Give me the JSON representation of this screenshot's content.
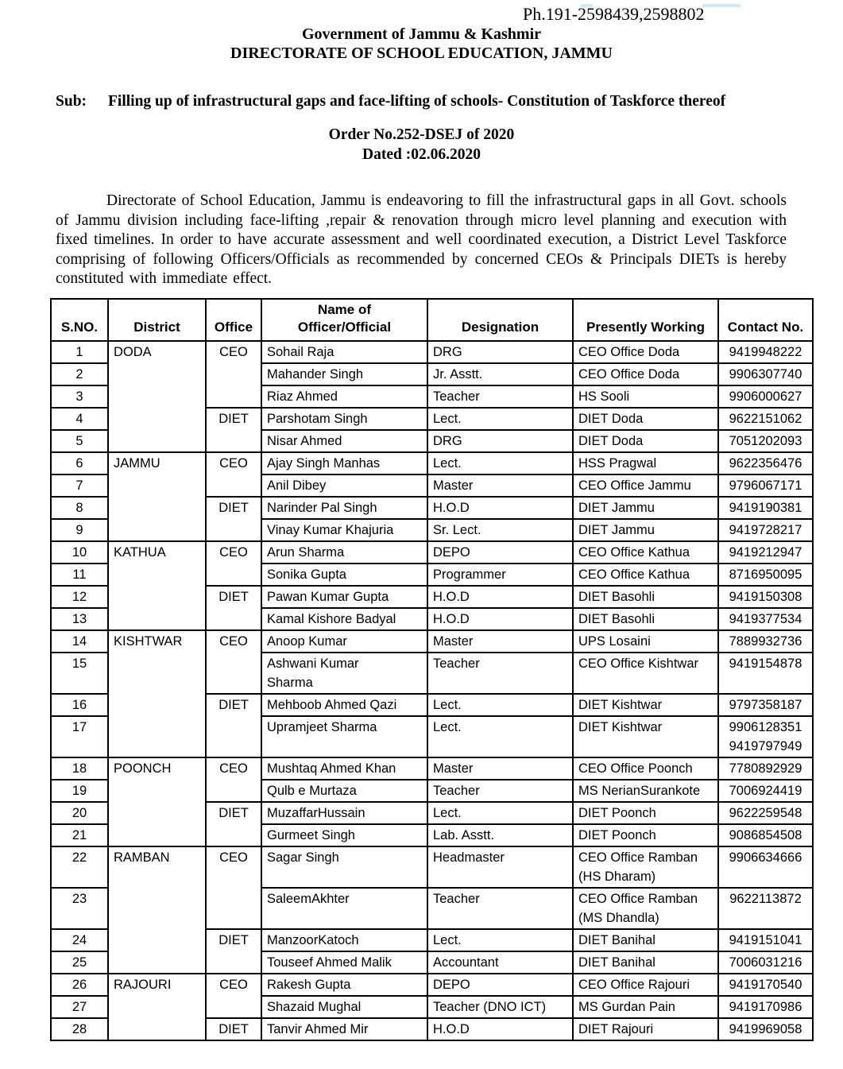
{
  "header": {
    "phone": "Ph.191-2598439,2598802",
    "org_line1": "Government of Jammu & Kashmir",
    "org_line2": "DIRECTORATE OF SCHOOL EDUCATION, JAMMU",
    "subject_label": "Sub:",
    "subject_text": "Filling up of infrastructural gaps and face-lifting of schools- Constitution of Taskforce thereof",
    "order_no": "Order No.252-DSEJ of 2020",
    "order_date": "Dated :02.06.2020"
  },
  "body": {
    "paragraph": "Directorate of School Education, Jammu is endeavoring to fill the infrastructural gaps in all Govt. schools of Jammu division including face-lifting ,repair & renovation through micro level planning and execution with fixed timelines. In order to have accurate assessment and well coordinated execution,  a District Level Taskforce comprising of following Officers/Officials as recommended by concerned CEOs & Principals DIETs is hereby constituted with immediate effect."
  },
  "table": {
    "headers": [
      "S.NO.",
      "District",
      "Office",
      "Name of\nOfficer/Official",
      "Designation",
      "Presently Working",
      "Contact No."
    ],
    "groups": [
      {
        "district": "DODA",
        "offices": [
          {
            "office": "CEO",
            "rows": [
              {
                "sno": "1",
                "name": "Sohail Raja",
                "designation": "DRG",
                "presently": "CEO Office Doda",
                "contact": "9419948222"
              },
              {
                "sno": "2",
                "name": "Mahander Singh",
                "designation": "Jr. Asstt.",
                "presently": "CEO Office Doda",
                "contact": "9906307740"
              },
              {
                "sno": "3",
                "name": "Riaz Ahmed",
                "designation": "Teacher",
                "presently": "HS Sooli",
                "contact": "9906000627"
              }
            ]
          },
          {
            "office": "DIET",
            "rows": [
              {
                "sno": "4",
                "name": "Parshotam Singh",
                "designation": "Lect.",
                "presently": "DIET Doda",
                "contact": "9622151062"
              },
              {
                "sno": "5",
                "name": "Nisar Ahmed",
                "designation": "DRG",
                "presently": "DIET Doda",
                "contact": "7051202093"
              }
            ]
          }
        ]
      },
      {
        "district": "JAMMU",
        "offices": [
          {
            "office": "CEO",
            "rows": [
              {
                "sno": "6",
                "name": "Ajay Singh Manhas",
                "designation": "Lect.",
                "presently": "HSS Pragwal",
                "contact": "9622356476"
              },
              {
                "sno": "7",
                "name": "Anil Dibey",
                "designation": "Master",
                "presently": "CEO Office Jammu",
                "contact": "9796067171"
              }
            ]
          },
          {
            "office": "DIET",
            "rows": [
              {
                "sno": "8",
                "name": "Narinder Pal Singh",
                "designation": "H.O.D",
                "presently": "DIET Jammu",
                "contact": "9419190381"
              },
              {
                "sno": "9",
                "name": "Vinay Kumar Khajuria",
                "designation": "Sr. Lect.",
                "presently": "DIET Jammu",
                "contact": "9419728217"
              }
            ]
          }
        ]
      },
      {
        "district": "KATHUA",
        "offices": [
          {
            "office": "CEO",
            "rows": [
              {
                "sno": "10",
                "name": "Arun Sharma",
                "designation": "DEPO",
                "presently": "CEO Office Kathua",
                "contact": "9419212947"
              },
              {
                "sno": "11",
                "name": "Sonika Gupta",
                "designation": "Programmer",
                "presently": "CEO Office Kathua",
                "contact": "8716950095"
              }
            ]
          },
          {
            "office": "DIET",
            "rows": [
              {
                "sno": "12",
                "name": "Pawan Kumar Gupta",
                "designation": "H.O.D",
                "presently": "DIET Basohli",
                "contact": "9419150308"
              },
              {
                "sno": "13",
                "name": "Kamal Kishore Badyal",
                "designation": "H.O.D",
                "presently": "DIET Basohli",
                "contact": "9419377534"
              }
            ]
          }
        ]
      },
      {
        "district": "KISHTWAR",
        "offices": [
          {
            "office": "CEO",
            "rows": [
              {
                "sno": "14",
                "name": "Anoop Kumar",
                "designation": "Master",
                "presently": "UPS Losaini",
                "contact": "7889932736"
              },
              {
                "sno": "15",
                "tall": true,
                "name": "Ashwani Kumar\nSharma",
                "designation": "Teacher",
                "presently": "CEO Office Kishtwar",
                "contact": "9419154878"
              }
            ]
          },
          {
            "office": "DIET",
            "rows": [
              {
                "sno": "16",
                "name": "Mehboob Ahmed Qazi",
                "designation": "Lect.",
                "presently": "DIET Kishtwar",
                "contact": "9797358187"
              },
              {
                "sno": "17",
                "tall": true,
                "name": "Upramjeet Sharma",
                "designation": "Lect.",
                "presently": "DIET Kishtwar",
                "contact": "9906128351\n9419797949"
              }
            ]
          }
        ]
      },
      {
        "district": "POONCH",
        "offices": [
          {
            "office": "CEO",
            "rows": [
              {
                "sno": "18",
                "name": "Mushtaq Ahmed Khan",
                "designation": "Master",
                "presently": "CEO Office Poonch",
                "contact": "7780892929"
              },
              {
                "sno": "19",
                "name": "Qulb e Murtaza",
                "designation": "Teacher",
                "presently": "MS NerianSurankote",
                "contact": "7006924419"
              }
            ]
          },
          {
            "office": "DIET",
            "rows": [
              {
                "sno": "20",
                "name": "MuzaffarHussain",
                "designation": "Lect.",
                "presently": "DIET Poonch",
                "contact": "9622259548"
              },
              {
                "sno": "21",
                "name": "Gurmeet Singh",
                "designation": "Lab. Asstt.",
                "presently": "DIET Poonch",
                "contact": "9086854508"
              }
            ]
          }
        ]
      },
      {
        "district": "RAMBAN",
        "offices": [
          {
            "office": "CEO",
            "rows": [
              {
                "sno": "22",
                "tall": true,
                "name": "Sagar Singh",
                "designation": "Headmaster",
                "presently": "CEO Office Ramban\n(HS Dharam)",
                "contact": "9906634666"
              },
              {
                "sno": "23",
                "tall": true,
                "name": "SaleemAkhter",
                "designation": "Teacher",
                "presently": "CEO Office Ramban\n(MS Dhandla)",
                "contact": "9622113872"
              }
            ]
          },
          {
            "office": "DIET",
            "rows": [
              {
                "sno": "24",
                "name": "ManzoorKatoch",
                "designation": "Lect.",
                "presently": "DIET Banihal",
                "contact": "9419151041"
              },
              {
                "sno": "25",
                "name": "Touseef Ahmed Malik",
                "designation": "Accountant",
                "presently": "DIET Banihal",
                "contact": "7006031216"
              }
            ]
          }
        ]
      },
      {
        "district": "RAJOURI",
        "offices": [
          {
            "office": "CEO",
            "rows": [
              {
                "sno": "26",
                "name": "Rakesh Gupta",
                "designation": "DEPO",
                "presently": "CEO Office Rajouri",
                "contact": "9419170540"
              },
              {
                "sno": "27",
                "name": "Shazaid Mughal",
                "designation": "Teacher (DNO ICT)",
                "presently": "MS Gurdan Pain",
                "contact": "9419170986"
              }
            ]
          },
          {
            "office": "DIET",
            "rows": [
              {
                "sno": "28",
                "name": "Tanvir Ahmed Mir",
                "designation": "H.O.D",
                "presently": "DIET Rajouri",
                "contact": "9419969058"
              }
            ]
          }
        ]
      }
    ]
  }
}
